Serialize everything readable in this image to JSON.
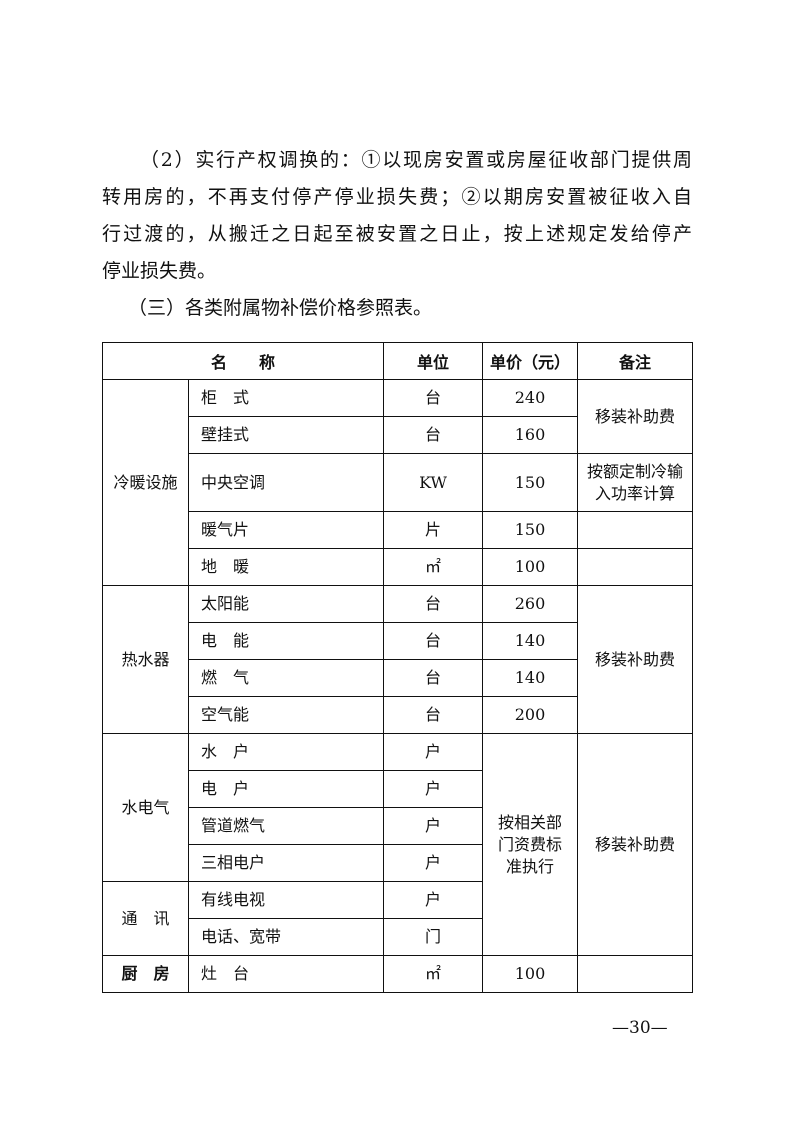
{
  "paragraph_lines": [
    "（2）实行产权调换的：①以现房安置或房屋征收部门提供周",
    "转用房的，不再支付停产停业损失费；②以期房安置被征收入自",
    "行过渡的，从搬迁之日起至被安置之日止，按上述规定发给停产",
    "停业损失费。"
  ],
  "section_title": "（三）各类附属物补偿价格参照表。",
  "table": {
    "headers": [
      "名　　称",
      "单位",
      "单价（元）",
      "备注"
    ],
    "groups": {
      "cooling": "冷暖设施",
      "water_heater": "热水器",
      "utilities": "水电气",
      "telecom": "通　讯",
      "kitchen": "厨　房"
    },
    "rows": [
      {
        "name": "柜　式",
        "unit": "台",
        "price": "240"
      },
      {
        "name": "壁挂式",
        "unit": "台",
        "price": "160"
      },
      {
        "name": "中央空调",
        "unit": "KW",
        "price": "150"
      },
      {
        "name": "暖气片",
        "unit": "片",
        "price": "150"
      },
      {
        "name": "地　暖",
        "unit": "㎡",
        "price": "100"
      },
      {
        "name": "太阳能",
        "unit": "台",
        "price": "260"
      },
      {
        "name": "电　能",
        "unit": "台",
        "price": "140"
      },
      {
        "name": "燃　气",
        "unit": "台",
        "price": "140"
      },
      {
        "name": "空气能",
        "unit": "台",
        "price": "200"
      },
      {
        "name": "水　户",
        "unit": "户"
      },
      {
        "name": "电　户",
        "unit": "户"
      },
      {
        "name": "管道燃气",
        "unit": "户"
      },
      {
        "name": "三相电户",
        "unit": "户"
      },
      {
        "name": "有线电视",
        "unit": "户"
      },
      {
        "name": "电话、宽带",
        "unit": "门"
      },
      {
        "name": "灶　台",
        "unit": "㎡",
        "price": "100"
      }
    ],
    "notes": {
      "relocation_subsidy": "移装补助费",
      "central_ac": "按额定制冷输入功率计算",
      "utility_price": "按相关部门资费标准执行"
    }
  },
  "page_number": "—30—"
}
